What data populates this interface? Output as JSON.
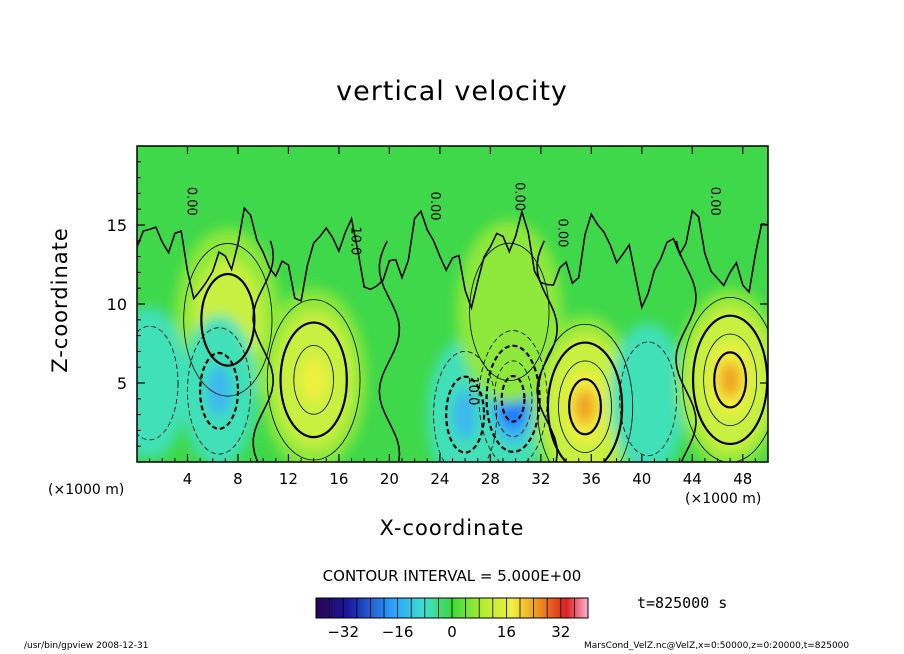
{
  "chart_data": {
    "type": "contour",
    "title": "vertical velocity",
    "xlabel": "X-coordinate",
    "ylabel": "Z-coordinate",
    "x_unit": "(×1000 m)",
    "y_unit": "(×1000 m)",
    "xlim": [
      0,
      50
    ],
    "ylim": [
      0,
      20
    ],
    "xticks": [
      4,
      8,
      12,
      16,
      20,
      24,
      28,
      32,
      36,
      40,
      44,
      48
    ],
    "yticks": [
      5,
      10,
      15
    ],
    "contour_interval_text": "CONTOUR INTERVAL = 5.000E+00",
    "time_text": "t=825000 s",
    "contour_labels": [
      "0.00",
      "0.00",
      "0.00",
      "0.00",
      "0.00",
      "10.0",
      "10.0"
    ],
    "colorbar": {
      "min": -40,
      "max": 40,
      "ticks": [
        -32,
        -16,
        0,
        16,
        32
      ]
    },
    "features": [
      {
        "x": 7.2,
        "z": 9.0,
        "w": 12
      },
      {
        "x": 6.5,
        "z": 4.5,
        "w": -14
      },
      {
        "x": 14.0,
        "z": 5.2,
        "w": 16
      },
      {
        "x": 26.0,
        "z": 3.0,
        "w": -12
      },
      {
        "x": 29.8,
        "z": 4.0,
        "w": -20
      },
      {
        "x": 29.5,
        "z": 9.5,
        "w": 6
      },
      {
        "x": 35.5,
        "z": 3.5,
        "w": 22
      },
      {
        "x": 40.5,
        "z": 4.0,
        "w": -6
      },
      {
        "x": 47.0,
        "z": 5.2,
        "w": 22
      },
      {
        "x": 1.0,
        "z": 5.0,
        "w": -5
      }
    ]
  },
  "footer": {
    "left": "/usr/bin/gpview   2008-12-31",
    "right": "MarsCond_VelZ.nc@VelZ,x=0:50000,z=0:20000,t=825000"
  }
}
